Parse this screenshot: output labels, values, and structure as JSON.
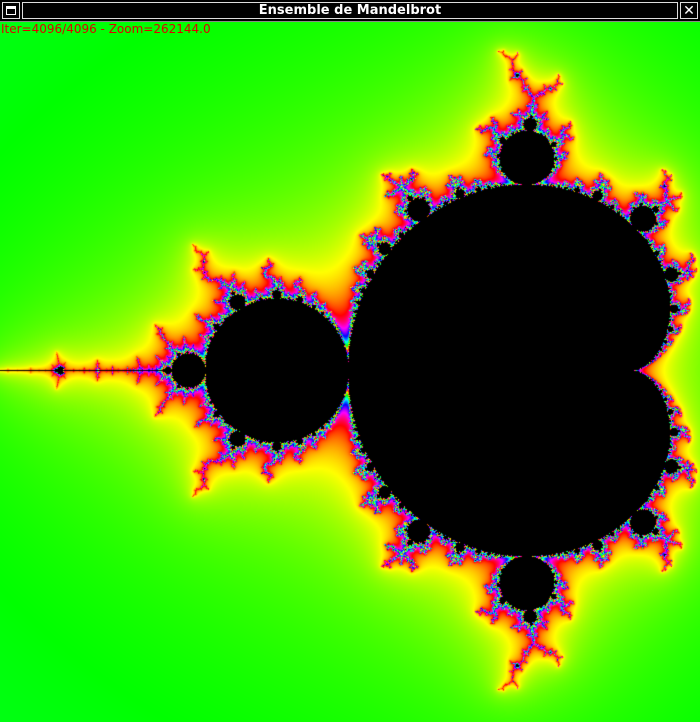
{
  "window": {
    "title": "Ensemble de Mandelbrot",
    "menu_icon": "window-menu-icon",
    "close_icon": "close-icon",
    "close_label": "✕"
  },
  "status": {
    "text": "Iter=4096/4096 - Zoom=262144.0"
  },
  "colors": {
    "background_outer": "#00ff90",
    "halo": "#ffff00",
    "set_interior": "#000000",
    "status_text": "#e00000",
    "titlebar": "#000000",
    "title_text": "#ffffff"
  }
}
